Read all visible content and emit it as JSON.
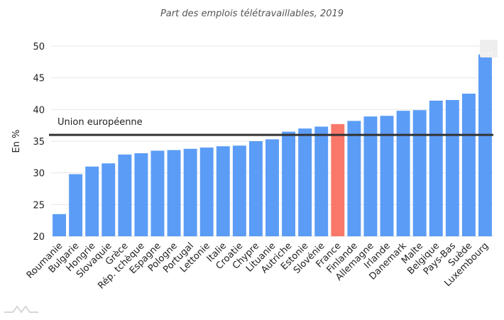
{
  "chart_data": {
    "type": "bar",
    "title": "Part des emplois télétravaillables, 2019",
    "ylabel": "En %",
    "xlabel": "",
    "ylim": [
      20,
      50
    ],
    "yticks": [
      20,
      25,
      30,
      35,
      40,
      45,
      50
    ],
    "grid": true,
    "categories": [
      "Roumanie",
      "Bulgarie",
      "Hongrie",
      "Slovaquie",
      "Grèce",
      "Rép. tchèque",
      "Espagne",
      "Pologne",
      "Portugal",
      "Lettonie",
      "Italie",
      "Croatie",
      "Chypre",
      "Lituanie",
      "Autriche",
      "Estonie",
      "Slovénie",
      "France",
      "Finlande",
      "Allemagne",
      "Irlande",
      "Danemark",
      "Malte",
      "Belgique",
      "Pays-Bas",
      "Suède",
      "Luxembourg"
    ],
    "values": [
      23.5,
      29.8,
      31.0,
      31.5,
      32.9,
      33.1,
      33.5,
      33.6,
      33.8,
      34.0,
      34.2,
      34.3,
      35.0,
      35.3,
      36.5,
      37.0,
      37.3,
      37.7,
      38.2,
      38.9,
      39.0,
      39.8,
      39.9,
      41.4,
      41.5,
      42.5,
      48.7
    ],
    "highlight_category": "France",
    "reference_line": {
      "label": "Union européenne",
      "value": 36.0
    },
    "colors": {
      "bar": "#5b9cf6",
      "highlight": "#f9786a",
      "reference_line": "#333333",
      "grid": "#e6e6e6"
    }
  }
}
